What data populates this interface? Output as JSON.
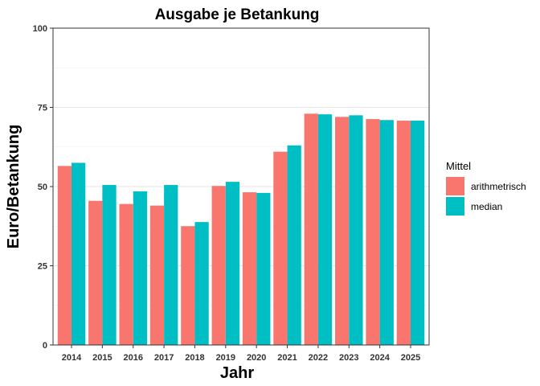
{
  "chart_data": {
    "type": "bar",
    "title": "Ausgabe je Betankung",
    "xlabel": "Jahr",
    "ylabel": "Euro/Betankung",
    "ylim": [
      0,
      100
    ],
    "yticks": [
      0,
      25,
      50,
      75,
      100
    ],
    "grid": true,
    "legend_position": "right",
    "legend_title": "Mittel",
    "categories": [
      "2014",
      "2015",
      "2016",
      "2017",
      "2018",
      "2019",
      "2020",
      "2021",
      "2022",
      "2023",
      "2024",
      "2025"
    ],
    "series": [
      {
        "name": "arithmetrisch",
        "color": "#F8766D",
        "values": [
          56.5,
          45.5,
          44.5,
          44.0,
          37.5,
          50.2,
          48.2,
          61.0,
          73.0,
          72.0,
          71.3,
          70.8
        ]
      },
      {
        "name": "median",
        "color": "#00BFC4",
        "values": [
          57.5,
          50.5,
          48.5,
          50.5,
          38.8,
          51.5,
          48.0,
          63.0,
          72.8,
          72.5,
          71.0,
          70.8
        ]
      }
    ]
  }
}
